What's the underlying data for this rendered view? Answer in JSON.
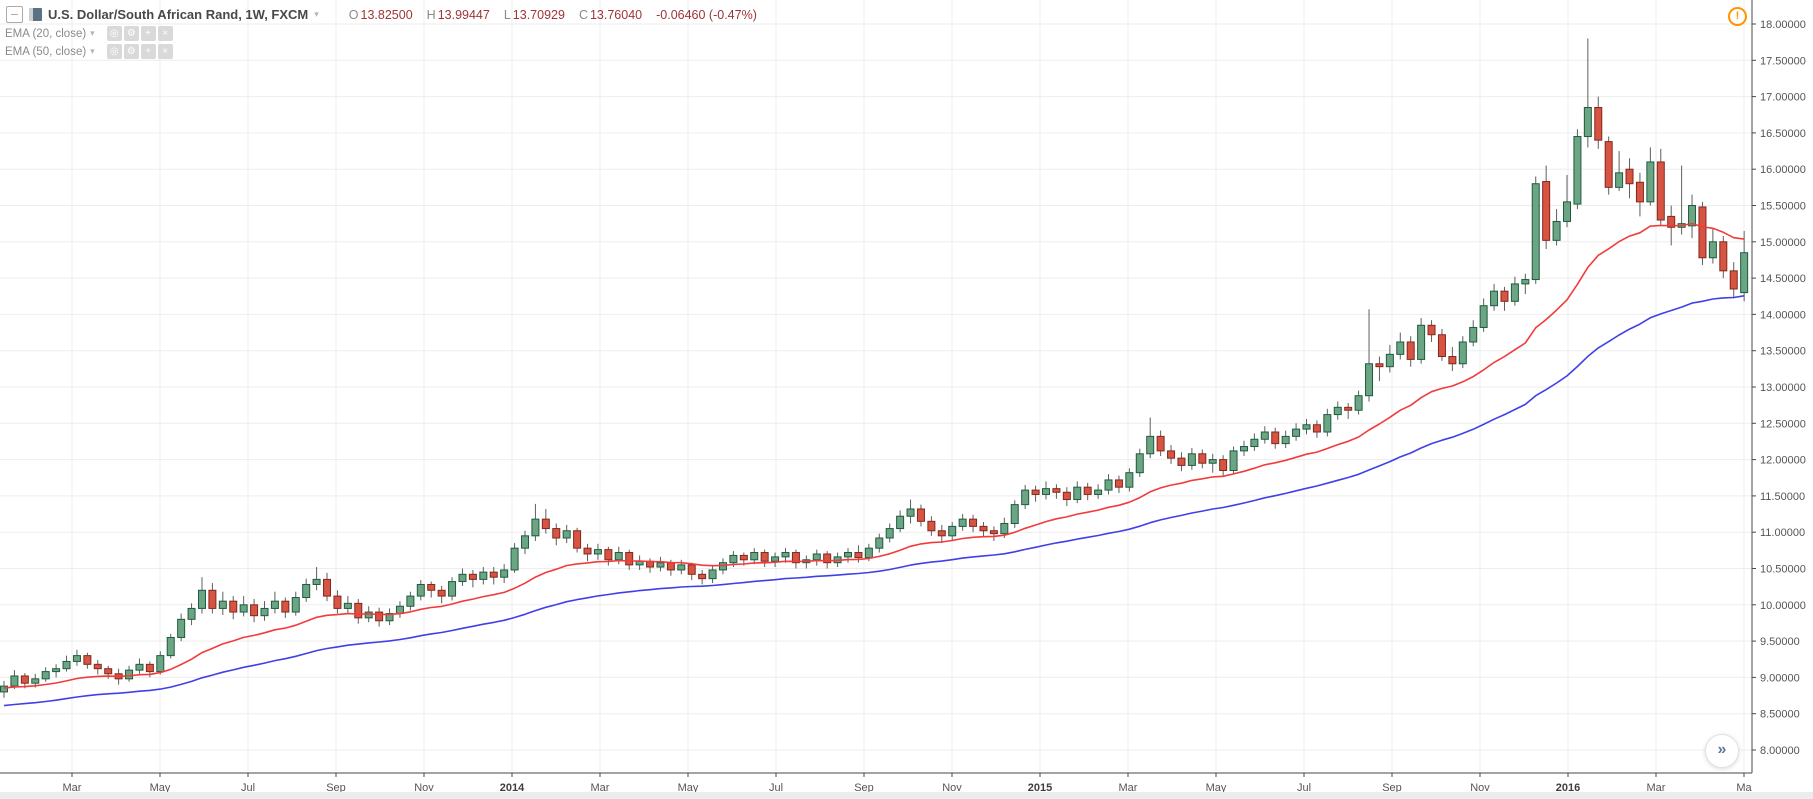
{
  "header": {
    "title": "U.S. Dollar/South African Rand, 1W, FXCM",
    "ohlc": {
      "o_label": "O",
      "o": "13.82500",
      "h_label": "H",
      "h": "13.99447",
      "l_label": "L",
      "l": "13.70929",
      "c_label": "C",
      "c": "13.76040",
      "change": "-0.06460 (-0.47%)"
    }
  },
  "icons": {
    "caret": "▾",
    "visibility": "◎",
    "settings": "⚙",
    "add": "+",
    "close": "×",
    "alert": "!",
    "jump": "»"
  },
  "chart_data": {
    "type": "candlestick",
    "symbol": "U.S. Dollar/South African Rand",
    "interval": "1W",
    "exchange": "FXCM",
    "colors": {
      "up_fill": "#6ba583",
      "up_border": "#1e5b40",
      "down_fill": "#d75442",
      "down_border": "#82281d",
      "wick": "#5e5e5e",
      "grid": "#ededed",
      "axis_line": "#4a4a4a",
      "axis_text": "#555555",
      "year_text": "#3f3f3f",
      "background": "#ffffff"
    },
    "y_axis": {
      "min": 8.0,
      "max": 18.0,
      "step": 0.5,
      "decimals": 5,
      "labels": [
        "18.00000",
        "17.50000",
        "17.00000",
        "16.50000",
        "16.00000",
        "15.50000",
        "15.00000",
        "14.50000",
        "14.00000",
        "13.50000",
        "13.00000",
        "12.50000",
        "12.00000",
        "11.50000",
        "11.00000",
        "10.50000",
        "10.00000",
        "9.50000",
        "9.00000",
        "8.50000",
        "8.00000"
      ]
    },
    "x_ticks": [
      {
        "label": "Mar",
        "year": false
      },
      {
        "label": "May",
        "year": false
      },
      {
        "label": "Jul",
        "year": false
      },
      {
        "label": "Sep",
        "year": false
      },
      {
        "label": "Nov",
        "year": false
      },
      {
        "label": "2014",
        "year": true
      },
      {
        "label": "Mar",
        "year": false
      },
      {
        "label": "May",
        "year": false
      },
      {
        "label": "Jul",
        "year": false
      },
      {
        "label": "Sep",
        "year": false
      },
      {
        "label": "Nov",
        "year": false
      },
      {
        "label": "2015",
        "year": true
      },
      {
        "label": "Mar",
        "year": false
      },
      {
        "label": "May",
        "year": false
      },
      {
        "label": "Jul",
        "year": false
      },
      {
        "label": "Sep",
        "year": false
      },
      {
        "label": "Nov",
        "year": false
      },
      {
        "label": "2016",
        "year": true
      },
      {
        "label": "Mar",
        "year": false
      },
      {
        "label": "Ma",
        "year": false
      }
    ],
    "emas": [
      {
        "label": "EMA (20, close)",
        "period": 20,
        "seed": 8.85,
        "color": "#f23b3b"
      },
      {
        "label": "EMA (50, close)",
        "period": 50,
        "seed": 8.6,
        "color": "#4040e8"
      }
    ],
    "ohlc": [
      [
        8.8,
        8.95,
        8.72,
        8.88
      ],
      [
        8.88,
        9.1,
        8.84,
        9.02
      ],
      [
        9.02,
        9.06,
        8.85,
        8.92
      ],
      [
        8.92,
        9.05,
        8.86,
        8.98
      ],
      [
        8.98,
        9.14,
        8.94,
        9.08
      ],
      [
        9.08,
        9.18,
        9.0,
        9.12
      ],
      [
        9.12,
        9.3,
        9.08,
        9.22
      ],
      [
        9.22,
        9.38,
        9.16,
        9.3
      ],
      [
        9.3,
        9.34,
        9.12,
        9.18
      ],
      [
        9.18,
        9.24,
        9.04,
        9.12
      ],
      [
        9.12,
        9.16,
        8.98,
        9.05
      ],
      [
        9.05,
        9.12,
        8.9,
        8.98
      ],
      [
        8.98,
        9.16,
        8.94,
        9.1
      ],
      [
        9.1,
        9.26,
        9.05,
        9.18
      ],
      [
        9.18,
        9.22,
        9.0,
        9.08
      ],
      [
        9.08,
        9.36,
        9.04,
        9.3
      ],
      [
        9.3,
        9.6,
        9.26,
        9.55
      ],
      [
        9.55,
        9.88,
        9.5,
        9.8
      ],
      [
        9.8,
        10.02,
        9.72,
        9.95
      ],
      [
        9.95,
        10.38,
        9.88,
        10.2
      ],
      [
        10.2,
        10.3,
        9.88,
        9.95
      ],
      [
        9.95,
        10.18,
        9.86,
        10.05
      ],
      [
        10.05,
        10.12,
        9.8,
        9.9
      ],
      [
        9.9,
        10.12,
        9.84,
        10.0
      ],
      [
        10.0,
        10.08,
        9.76,
        9.85
      ],
      [
        9.85,
        10.05,
        9.78,
        9.95
      ],
      [
        9.95,
        10.18,
        9.88,
        10.05
      ],
      [
        10.05,
        10.1,
        9.82,
        9.9
      ],
      [
        9.9,
        10.18,
        9.85,
        10.1
      ],
      [
        10.1,
        10.36,
        10.04,
        10.28
      ],
      [
        10.28,
        10.52,
        10.2,
        10.35
      ],
      [
        10.35,
        10.44,
        10.05,
        10.12
      ],
      [
        10.12,
        10.2,
        9.88,
        9.95
      ],
      [
        9.95,
        10.12,
        9.88,
        10.02
      ],
      [
        10.02,
        10.08,
        9.74,
        9.82
      ],
      [
        9.82,
        9.98,
        9.76,
        9.9
      ],
      [
        9.9,
        9.96,
        9.7,
        9.78
      ],
      [
        9.78,
        9.95,
        9.72,
        9.88
      ],
      [
        9.88,
        10.05,
        9.82,
        9.98
      ],
      [
        9.98,
        10.18,
        9.92,
        10.12
      ],
      [
        10.12,
        10.34,
        10.06,
        10.28
      ],
      [
        10.28,
        10.32,
        10.1,
        10.2
      ],
      [
        10.2,
        10.26,
        10.02,
        10.12
      ],
      [
        10.12,
        10.38,
        10.06,
        10.32
      ],
      [
        10.32,
        10.5,
        10.26,
        10.42
      ],
      [
        10.42,
        10.48,
        10.24,
        10.35
      ],
      [
        10.35,
        10.52,
        10.28,
        10.45
      ],
      [
        10.45,
        10.52,
        10.28,
        10.38
      ],
      [
        10.38,
        10.56,
        10.3,
        10.48
      ],
      [
        10.48,
        10.85,
        10.44,
        10.78
      ],
      [
        10.78,
        11.02,
        10.7,
        10.95
      ],
      [
        10.95,
        11.39,
        10.88,
        11.18
      ],
      [
        11.18,
        11.32,
        10.98,
        11.05
      ],
      [
        11.05,
        11.12,
        10.82,
        10.92
      ],
      [
        10.92,
        11.1,
        10.85,
        11.02
      ],
      [
        11.02,
        11.06,
        10.72,
        10.78
      ],
      [
        10.78,
        10.84,
        10.6,
        10.7
      ],
      [
        10.7,
        10.84,
        10.62,
        10.76
      ],
      [
        10.76,
        10.8,
        10.54,
        10.62
      ],
      [
        10.62,
        10.8,
        10.56,
        10.72
      ],
      [
        10.72,
        10.76,
        10.48,
        10.55
      ],
      [
        10.55,
        10.68,
        10.48,
        10.6
      ],
      [
        10.6,
        10.64,
        10.44,
        10.52
      ],
      [
        10.52,
        10.66,
        10.46,
        10.58
      ],
      [
        10.58,
        10.62,
        10.4,
        10.48
      ],
      [
        10.48,
        10.62,
        10.42,
        10.55
      ],
      [
        10.55,
        10.58,
        10.34,
        10.42
      ],
      [
        10.42,
        10.48,
        10.28,
        10.36
      ],
      [
        10.36,
        10.54,
        10.3,
        10.48
      ],
      [
        10.48,
        10.64,
        10.42,
        10.58
      ],
      [
        10.58,
        10.74,
        10.52,
        10.68
      ],
      [
        10.68,
        10.72,
        10.54,
        10.62
      ],
      [
        10.62,
        10.78,
        10.56,
        10.72
      ],
      [
        10.72,
        10.76,
        10.52,
        10.6
      ],
      [
        10.6,
        10.72,
        10.52,
        10.66
      ],
      [
        10.66,
        10.78,
        10.58,
        10.72
      ],
      [
        10.72,
        10.76,
        10.5,
        10.58
      ],
      [
        10.58,
        10.68,
        10.5,
        10.62
      ],
      [
        10.62,
        10.76,
        10.54,
        10.7
      ],
      [
        10.7,
        10.74,
        10.5,
        10.58
      ],
      [
        10.58,
        10.72,
        10.52,
        10.66
      ],
      [
        10.66,
        10.78,
        10.58,
        10.72
      ],
      [
        10.72,
        10.82,
        10.58,
        10.65
      ],
      [
        10.65,
        10.84,
        10.6,
        10.78
      ],
      [
        10.78,
        10.98,
        10.72,
        10.92
      ],
      [
        10.92,
        11.12,
        10.86,
        11.05
      ],
      [
        11.05,
        11.3,
        11.0,
        11.22
      ],
      [
        11.22,
        11.45,
        11.12,
        11.32
      ],
      [
        11.32,
        11.38,
        11.08,
        11.15
      ],
      [
        11.15,
        11.22,
        10.95,
        11.02
      ],
      [
        11.02,
        11.1,
        10.85,
        10.95
      ],
      [
        10.95,
        11.14,
        10.88,
        11.08
      ],
      [
        11.08,
        11.25,
        11.02,
        11.18
      ],
      [
        11.18,
        11.24,
        11.0,
        11.08
      ],
      [
        11.08,
        11.14,
        10.94,
        11.02
      ],
      [
        11.02,
        11.08,
        10.88,
        10.98
      ],
      [
        10.98,
        11.2,
        10.92,
        11.12
      ],
      [
        11.12,
        11.44,
        11.06,
        11.38
      ],
      [
        11.38,
        11.65,
        11.32,
        11.58
      ],
      [
        11.58,
        11.64,
        11.42,
        11.52
      ],
      [
        11.52,
        11.7,
        11.45,
        11.6
      ],
      [
        11.6,
        11.66,
        11.46,
        11.55
      ],
      [
        11.55,
        11.62,
        11.36,
        11.45
      ],
      [
        11.45,
        11.7,
        11.4,
        11.62
      ],
      [
        11.62,
        11.68,
        11.44,
        11.52
      ],
      [
        11.52,
        11.66,
        11.46,
        11.58
      ],
      [
        11.58,
        11.8,
        11.52,
        11.72
      ],
      [
        11.72,
        11.78,
        11.54,
        11.62
      ],
      [
        11.62,
        11.88,
        11.56,
        11.82
      ],
      [
        11.82,
        12.15,
        11.76,
        12.08
      ],
      [
        12.08,
        12.58,
        12.02,
        12.32
      ],
      [
        12.32,
        12.4,
        12.05,
        12.12
      ],
      [
        12.12,
        12.2,
        11.94,
        12.02
      ],
      [
        12.02,
        12.1,
        11.84,
        11.92
      ],
      [
        11.92,
        12.16,
        11.86,
        12.08
      ],
      [
        12.08,
        12.14,
        11.88,
        11.95
      ],
      [
        11.95,
        12.08,
        11.82,
        12.0
      ],
      [
        12.0,
        12.06,
        11.78,
        11.85
      ],
      [
        11.85,
        12.18,
        11.8,
        12.12
      ],
      [
        12.12,
        12.26,
        12.05,
        12.18
      ],
      [
        12.18,
        12.36,
        12.12,
        12.28
      ],
      [
        12.28,
        12.46,
        12.22,
        12.38
      ],
      [
        12.38,
        12.44,
        12.15,
        12.22
      ],
      [
        12.22,
        12.4,
        12.16,
        12.32
      ],
      [
        12.32,
        12.5,
        12.26,
        12.42
      ],
      [
        12.42,
        12.56,
        12.35,
        12.48
      ],
      [
        12.48,
        12.54,
        12.3,
        12.38
      ],
      [
        12.38,
        12.7,
        12.32,
        12.62
      ],
      [
        12.62,
        12.8,
        12.55,
        12.72
      ],
      [
        12.72,
        12.78,
        12.56,
        12.68
      ],
      [
        12.68,
        12.95,
        12.62,
        12.88
      ],
      [
        12.88,
        14.07,
        12.8,
        13.32
      ],
      [
        13.32,
        13.42,
        13.08,
        13.28
      ],
      [
        13.28,
        13.58,
        13.2,
        13.45
      ],
      [
        13.45,
        13.75,
        13.38,
        13.62
      ],
      [
        13.62,
        13.7,
        13.28,
        13.38
      ],
      [
        13.38,
        13.95,
        13.32,
        13.85
      ],
      [
        13.85,
        13.92,
        13.62,
        13.72
      ],
      [
        13.72,
        13.8,
        13.36,
        13.42
      ],
      [
        13.42,
        13.55,
        13.22,
        13.32
      ],
      [
        13.32,
        13.7,
        13.26,
        13.62
      ],
      [
        13.62,
        13.92,
        13.56,
        13.82
      ],
      [
        13.82,
        14.22,
        13.76,
        14.12
      ],
      [
        14.12,
        14.42,
        14.05,
        14.32
      ],
      [
        14.32,
        14.38,
        14.05,
        14.18
      ],
      [
        14.18,
        14.52,
        14.12,
        14.42
      ],
      [
        14.42,
        14.56,
        14.28,
        14.48
      ],
      [
        14.48,
        15.9,
        14.42,
        15.8
      ],
      [
        15.83,
        16.05,
        14.9,
        15.02
      ],
      [
        15.02,
        15.45,
        14.95,
        15.28
      ],
      [
        15.28,
        15.92,
        15.2,
        15.55
      ],
      [
        15.52,
        16.55,
        15.45,
        16.45
      ],
      [
        16.45,
        17.8,
        16.3,
        16.85
      ],
      [
        16.85,
        17.0,
        16.28,
        16.4
      ],
      [
        16.38,
        16.45,
        15.65,
        15.75
      ],
      [
        15.75,
        16.25,
        15.7,
        15.95
      ],
      [
        16.0,
        16.15,
        15.6,
        15.8
      ],
      [
        15.82,
        15.95,
        15.35,
        15.55
      ],
      [
        15.55,
        16.3,
        15.5,
        16.1
      ],
      [
        16.1,
        16.28,
        15.22,
        15.3
      ],
      [
        15.35,
        15.5,
        14.95,
        15.2
      ],
      [
        15.2,
        16.05,
        15.1,
        15.25
      ],
      [
        15.22,
        15.65,
        15.05,
        15.5
      ],
      [
        15.48,
        15.55,
        14.68,
        14.78
      ],
      [
        14.78,
        15.18,
        14.7,
        15.0
      ],
      [
        15.0,
        15.08,
        14.5,
        14.6
      ],
      [
        14.6,
        14.72,
        14.22,
        14.35
      ],
      [
        14.3,
        15.15,
        14.18,
        14.85
      ]
    ]
  }
}
